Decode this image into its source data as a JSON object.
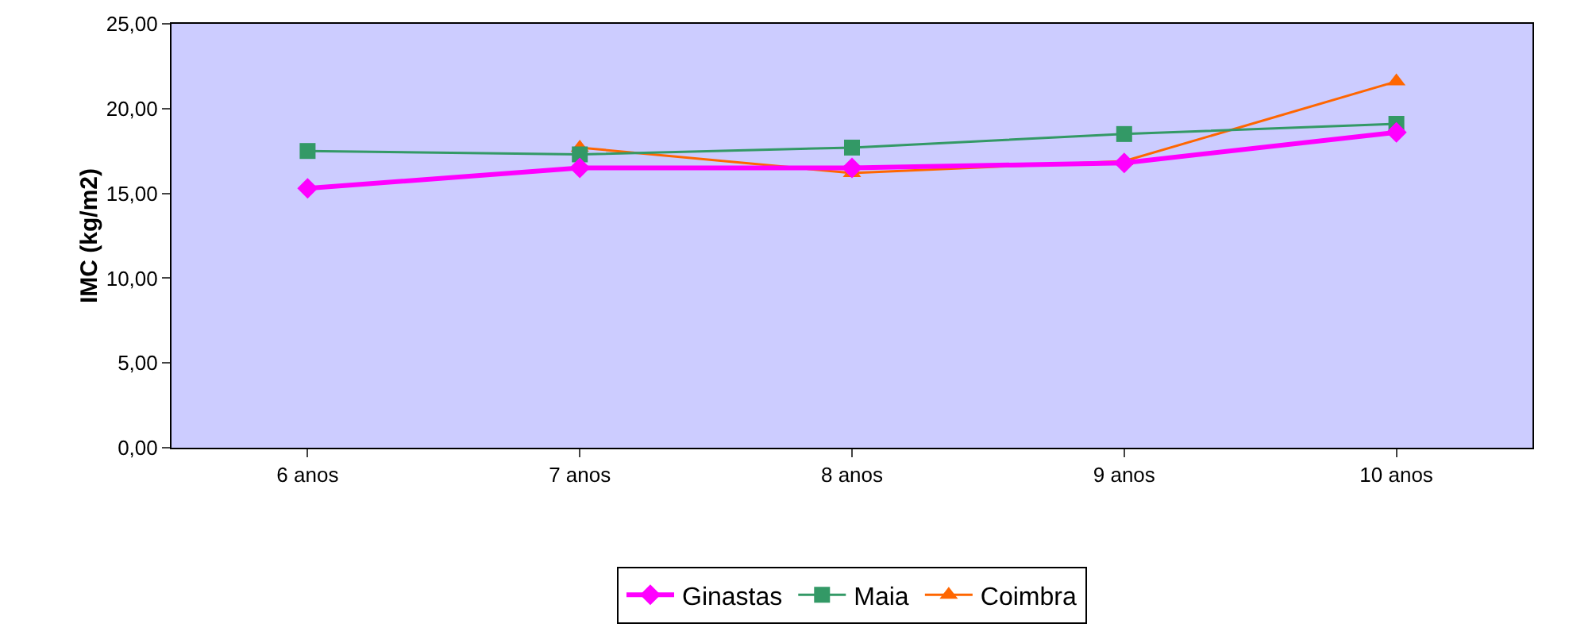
{
  "chart_data": {
    "type": "line",
    "ylabel": "IMC (kg/m2)",
    "categories": [
      "6 anos",
      "7 anos",
      "8 anos",
      "9 anos",
      "10 anos"
    ],
    "series": [
      {
        "name": "Ginastas",
        "color": "#ff00ff",
        "marker": "diamond",
        "values": [
          15.3,
          16.5,
          16.5,
          16.8,
          18.6
        ]
      },
      {
        "name": "Maia",
        "color": "#339966",
        "marker": "square",
        "values": [
          17.5,
          17.3,
          17.7,
          18.5,
          19.1
        ]
      },
      {
        "name": "Coimbra",
        "color": "#ff6600",
        "marker": "triangle",
        "values": [
          null,
          17.7,
          16.2,
          16.9,
          21.6
        ]
      }
    ],
    "ylim": [
      0,
      25
    ],
    "yticks": [
      {
        "value": 0,
        "label": "0,00"
      },
      {
        "value": 5,
        "label": "5,00"
      },
      {
        "value": 10,
        "label": "10,00"
      },
      {
        "value": 15,
        "label": "15,00"
      },
      {
        "value": 20,
        "label": "20,00"
      },
      {
        "value": 25,
        "label": "25,00"
      }
    ],
    "grid": false,
    "legend": "bottom"
  }
}
